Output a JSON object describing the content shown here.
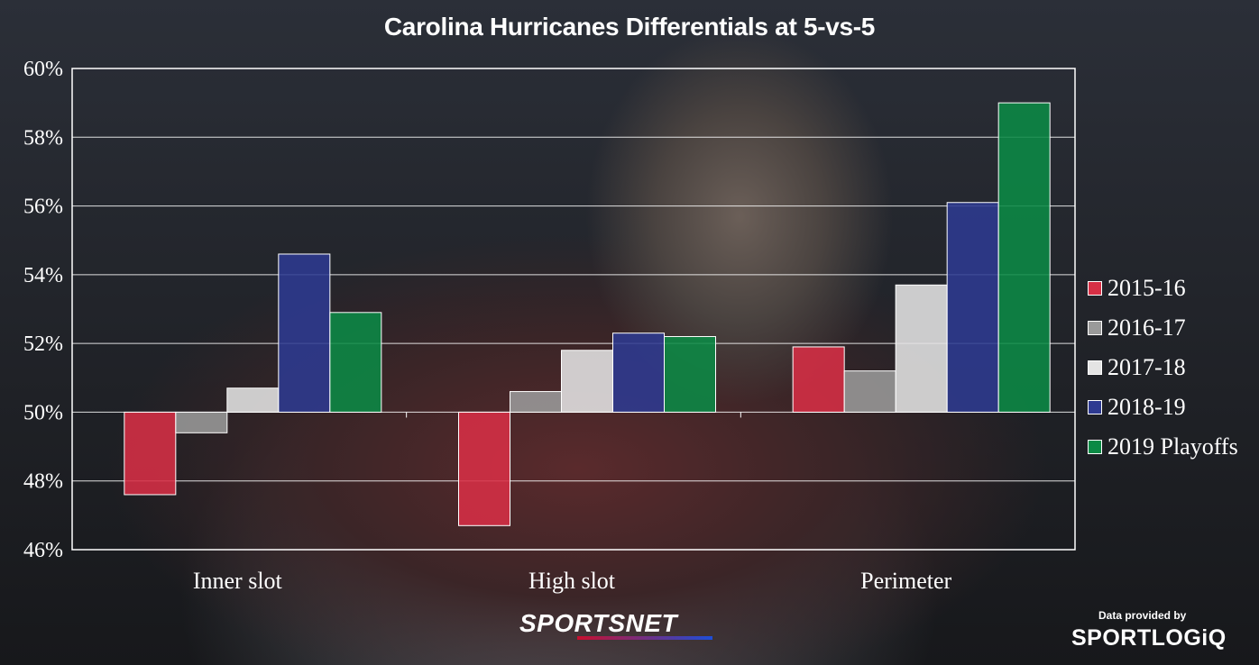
{
  "chart_data": {
    "type": "bar",
    "title": "Carolina Hurricanes Differentials at 5-vs-5",
    "categories": [
      "Inner slot",
      "High slot",
      "Perimeter"
    ],
    "series": [
      {
        "name": "2015-16",
        "color": "#d72f45",
        "values": [
          47.6,
          46.7,
          51.9
        ]
      },
      {
        "name": "2016-17",
        "color": "#9a9a9a",
        "values": [
          49.4,
          50.6,
          51.2
        ]
      },
      {
        "name": "2017-18",
        "color": "#e4e4e4",
        "values": [
          50.7,
          51.8,
          53.7
        ]
      },
      {
        "name": "2018-19",
        "color": "#2e3a91",
        "values": [
          54.6,
          52.3,
          56.1
        ]
      },
      {
        "name": "2019 Playoffs",
        "color": "#0b8a45",
        "values": [
          52.9,
          52.2,
          59.0
        ]
      }
    ],
    "baseline": 50,
    "ylim": [
      46,
      60
    ],
    "yticks": [
      60,
      58,
      56,
      54,
      52,
      50,
      48,
      46
    ],
    "ytick_labels": [
      "60%",
      "58%",
      "56%",
      "54%",
      "52%",
      "50%",
      "48%",
      "46%"
    ],
    "grid": true,
    "legend_position": "right"
  },
  "branding": {
    "network": "SPORTSNET",
    "provided_by": "Data provided by",
    "provider": "SPORTLOGiQ"
  }
}
